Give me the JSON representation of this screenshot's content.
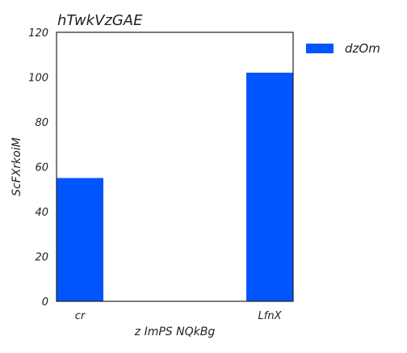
{
  "chart_data": {
    "type": "bar",
    "title": "hTwkVzGAE",
    "xlabel": "z ImPS NQkBg",
    "ylabel": "ScFXrkoiM",
    "categories": [
      "cr",
      "LfnX"
    ],
    "series": [
      {
        "name": "dzOm",
        "values": [
          55,
          102
        ]
      }
    ],
    "ylim": [
      0,
      120
    ],
    "yticks": [
      0,
      20,
      40,
      60,
      80,
      100,
      120
    ],
    "grid": false,
    "legend": "outside-right",
    "colors": {
      "bar": "#0055ff",
      "axis": "#222222"
    }
  }
}
